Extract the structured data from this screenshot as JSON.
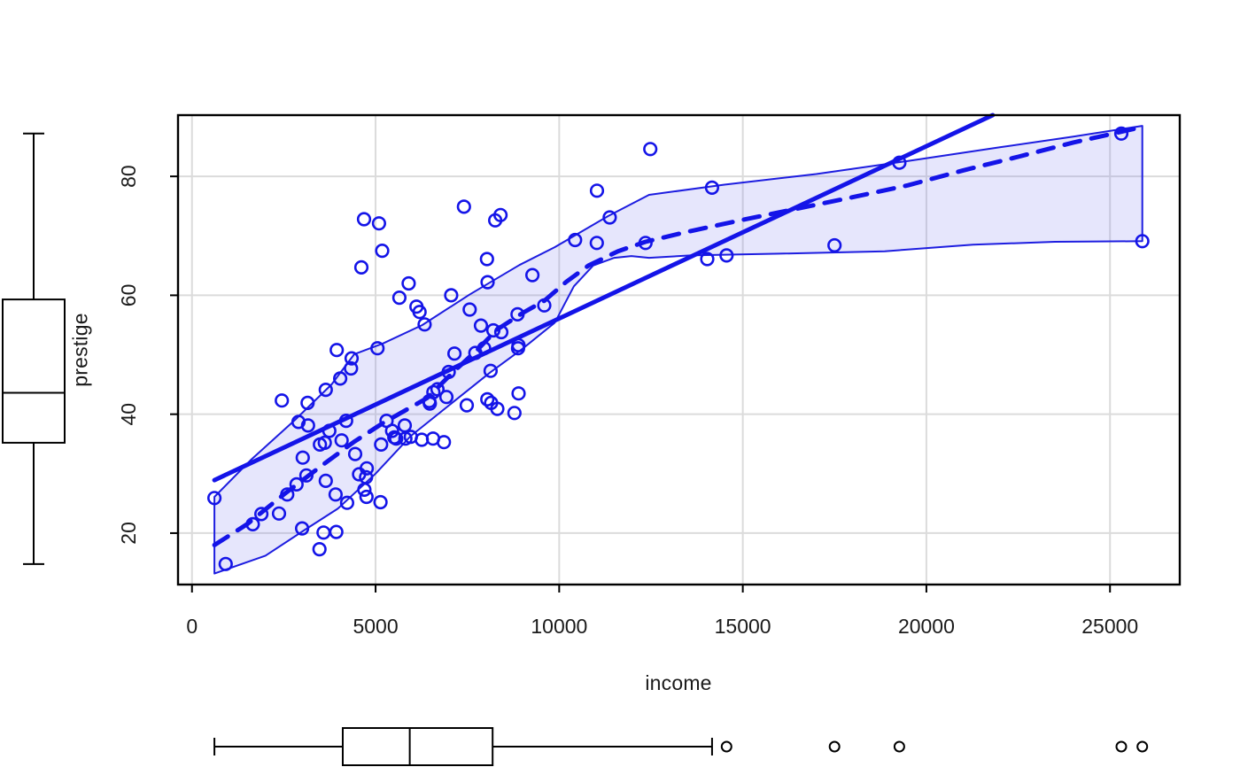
{
  "colors": {
    "blue": "#1414e8",
    "envelope_fill": "rgba(104,104,240,0.17)",
    "envelope_stroke": "#1d1de0",
    "grid": "#dbdbdb",
    "text": "#1a1a1a",
    "box": "#000000",
    "background": "#ffffff"
  },
  "chart_data": {
    "type": "scatter",
    "title": "",
    "xlabel": "income",
    "ylabel": "prestige",
    "xlim": [
      -380,
      26900
    ],
    "ylim": [
      11.35,
      90.3
    ],
    "x_ticks": [
      0,
      5000,
      10000,
      15000,
      20000,
      25000
    ],
    "y_ticks": [
      20,
      40,
      60,
      80
    ],
    "grid": true,
    "legend": "none",
    "points": [
      [
        12351,
        68.8
      ],
      [
        25879,
        69.1
      ],
      [
        9271,
        63.4
      ],
      [
        8865,
        56.8
      ],
      [
        8403,
        73.5
      ],
      [
        11030,
        77.6
      ],
      [
        8258,
        72.6
      ],
      [
        14163,
        78.1
      ],
      [
        11377,
        73.1
      ],
      [
        11023,
        68.8
      ],
      [
        5902,
        62.0
      ],
      [
        7059,
        60.0
      ],
      [
        8425,
        53.8
      ],
      [
        8049,
        62.2
      ],
      [
        7405,
        74.9
      ],
      [
        6336,
        55.1
      ],
      [
        19263,
        82.3
      ],
      [
        6112,
        58.1
      ],
      [
        9593,
        58.3
      ],
      [
        4686,
        72.8
      ],
      [
        12480,
        84.6
      ],
      [
        5648,
        59.6
      ],
      [
        8034,
        66.1
      ],
      [
        25308,
        87.2
      ],
      [
        14558,
        66.7
      ],
      [
        17498,
        68.4
      ],
      [
        4614,
        64.7
      ],
      [
        3485,
        34.9
      ],
      [
        5092,
        72.1
      ],
      [
        10432,
        69.3
      ],
      [
        5180,
        67.5
      ],
      [
        6197,
        57.2
      ],
      [
        7562,
        57.6
      ],
      [
        8206,
        54.1
      ],
      [
        4036,
        46.0
      ],
      [
        3148,
        41.9
      ],
      [
        4348,
        49.4
      ],
      [
        2448,
        42.3
      ],
      [
        4330,
        47.7
      ],
      [
        4761,
        30.9
      ],
      [
        3016,
        32.7
      ],
      [
        2901,
        38.7
      ],
      [
        5511,
        36.1
      ],
      [
        3739,
        37.2
      ],
      [
        3161,
        38.1
      ],
      [
        4741,
        29.4
      ],
      [
        5052,
        51.1
      ],
      [
        6259,
        35.7
      ],
      [
        4075,
        35.6
      ],
      [
        7482,
        41.5
      ],
      [
        8780,
        40.2
      ],
      [
        2594,
        26.5
      ],
      [
        918,
        14.8
      ],
      [
        2370,
        23.3
      ],
      [
        8131,
        47.3
      ],
      [
        6992,
        47.1
      ],
      [
        7956,
        51.1
      ],
      [
        8895,
        43.5
      ],
      [
        8891,
        51.6
      ],
      [
        3116,
        29.7
      ],
      [
        3930,
        20.2
      ],
      [
        7869,
        54.9
      ],
      [
        611,
        25.9
      ],
      [
        3000,
        20.8
      ],
      [
        3472,
        17.3
      ],
      [
        3582,
        20.1
      ],
      [
        1656,
        21.5
      ],
      [
        3643,
        44.1
      ],
      [
        6860,
        35.3
      ],
      [
        5562,
        35.9
      ],
      [
        4224,
        25.1
      ],
      [
        4753,
        26.1
      ],
      [
        14032,
        66.1
      ],
      [
        6462,
        42.2
      ],
      [
        3617,
        35.2
      ],
      [
        4443,
        33.3
      ],
      [
        3643,
        28.8
      ],
      [
        8043,
        42.5
      ],
      [
        6686,
        44.2
      ],
      [
        6565,
        35.9
      ],
      [
        6477,
        41.8
      ],
      [
        5811,
        35.9
      ],
      [
        6573,
        43.7
      ],
      [
        3942,
        50.8
      ],
      [
        5449,
        37.2
      ],
      [
        2847,
        28.2
      ],
      [
        5795,
        38.1
      ],
      [
        7716,
        50.3
      ],
      [
        4696,
        27.3
      ],
      [
        8316,
        40.9
      ],
      [
        7147,
        50.2
      ],
      [
        3910,
        26.5
      ],
      [
        5299,
        38.9
      ],
      [
        5959,
        36.2
      ],
      [
        4549,
        29.9
      ],
      [
        6928,
        42.9
      ],
      [
        8146,
        41.9
      ],
      [
        8880,
        51.1
      ],
      [
        1890,
        23.2
      ],
      [
        5134,
        25.2
      ],
      [
        4199,
        38.9
      ],
      [
        5150,
        34.9
      ]
    ],
    "regression_line": {
      "intercept": 27.14,
      "slope": 0.0028966,
      "x_start": 611,
      "x_end": 25879
    },
    "loess_line": [
      [
        611,
        18.0
      ],
      [
        1500,
        21.5
      ],
      [
        2500,
        26.5
      ],
      [
        3500,
        31.2
      ],
      [
        4400,
        35.3
      ],
      [
        5200,
        38.5
      ],
      [
        6400,
        42.7
      ],
      [
        7100,
        47.0
      ],
      [
        7800,
        51.0
      ],
      [
        8300,
        54.2
      ],
      [
        9000,
        57.0
      ],
      [
        9600,
        59.1
      ],
      [
        10200,
        62.3
      ],
      [
        10800,
        65.0
      ],
      [
        11600,
        67.4
      ],
      [
        12350,
        69.0
      ],
      [
        13500,
        70.7
      ],
      [
        15000,
        72.7
      ],
      [
        16500,
        74.6
      ],
      [
        18000,
        76.5
      ],
      [
        19500,
        78.5
      ],
      [
        21000,
        81.0
      ],
      [
        22500,
        83.3
      ],
      [
        24000,
        85.7
      ],
      [
        25879,
        88.3
      ]
    ],
    "envelope_upper": [
      [
        611,
        26.1
      ],
      [
        1600,
        32.3
      ],
      [
        2800,
        39.0
      ],
      [
        3800,
        45.0
      ],
      [
        4420,
        50.1
      ],
      [
        5200,
        51.9
      ],
      [
        6273,
        55.0
      ],
      [
        7555,
        60.1
      ],
      [
        8919,
        65.1
      ],
      [
        9882,
        68.1
      ],
      [
        11325,
        73.3
      ],
      [
        12447,
        76.9
      ],
      [
        14500,
        78.6
      ],
      [
        17000,
        80.4
      ],
      [
        19500,
        82.6
      ],
      [
        22000,
        84.9
      ],
      [
        24000,
        86.7
      ],
      [
        25879,
        88.5
      ]
    ],
    "envelope_lower": [
      [
        611,
        13.2
      ],
      [
        2000,
        16.2
      ],
      [
        3087,
        20.6
      ],
      [
        3970,
        24.1
      ],
      [
        5000,
        30.0
      ],
      [
        5951,
        36.3
      ],
      [
        7000,
        41.5
      ],
      [
        8116,
        47.0
      ],
      [
        9000,
        51.0
      ],
      [
        9881,
        55.4
      ],
      [
        10400,
        61.5
      ],
      [
        10924,
        65.0
      ],
      [
        11500,
        66.3
      ],
      [
        11966,
        66.6
      ],
      [
        12447,
        66.3
      ],
      [
        13570,
        66.7
      ],
      [
        16000,
        67.0
      ],
      [
        18864,
        67.4
      ],
      [
        21270,
        68.5
      ],
      [
        23500,
        69.0
      ],
      [
        25879,
        69.1
      ]
    ],
    "x_boxplot": {
      "min": 611,
      "q1": 4106,
      "median": 5930.5,
      "q3": 8187,
      "whisker_high": 14163,
      "outliers": [
        14558,
        17498,
        19263,
        25308,
        25879
      ]
    },
    "y_boxplot": {
      "min": 14.8,
      "q1": 35.2,
      "median": 43.6,
      "q3": 59.3,
      "max": 87.2,
      "outliers": []
    }
  }
}
